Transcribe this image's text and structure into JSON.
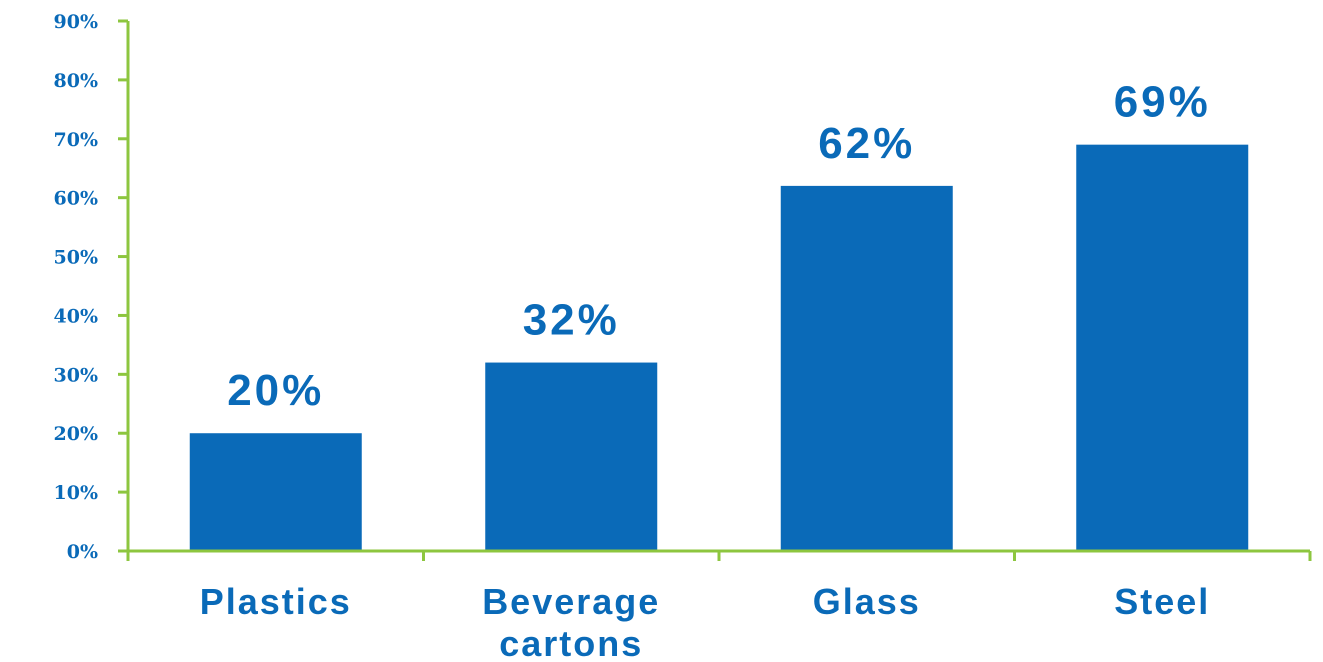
{
  "chart_data": {
    "type": "bar",
    "categories": [
      [
        "Plastics"
      ],
      [
        "Beverage",
        "cartons"
      ],
      [
        "Glass"
      ],
      [
        "Steel"
      ]
    ],
    "values": [
      20,
      32,
      62,
      69
    ],
    "value_labels": [
      "20%",
      "32%",
      "62%",
      "69%"
    ],
    "y_ticks": [
      "0%",
      "10%",
      "20%",
      "30%",
      "40%",
      "50%",
      "60%",
      "70%",
      "80%",
      "90%"
    ],
    "ylim": [
      0,
      90
    ],
    "grid": false,
    "colors": {
      "bar": "#0A6AB8",
      "axis": "#8DC63F",
      "text": "#0A6AB8"
    }
  }
}
